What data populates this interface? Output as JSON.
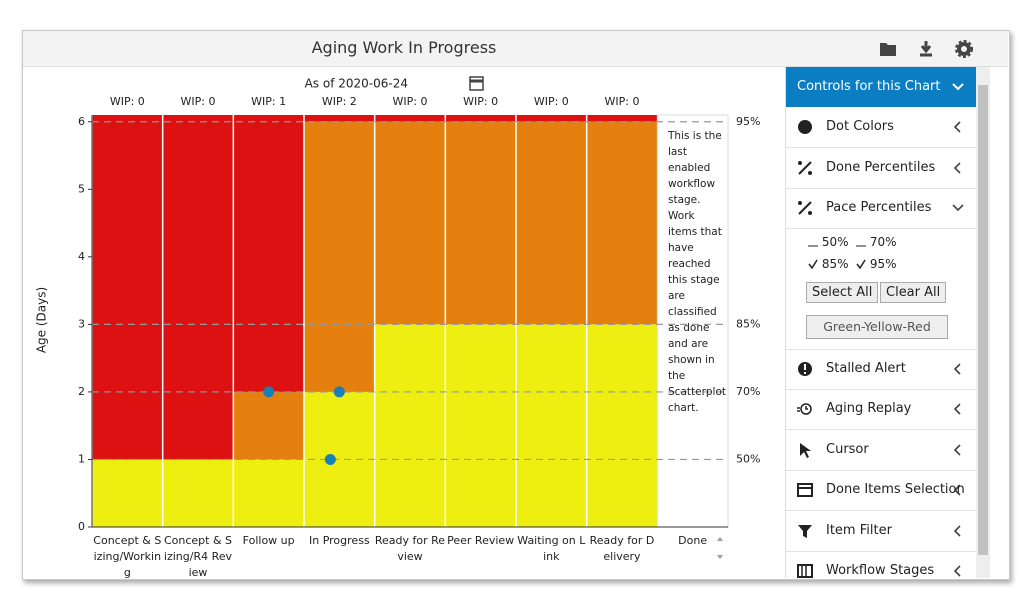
{
  "header": {
    "title": "Aging Work In Progress"
  },
  "chart_data": {
    "type": "scatter",
    "as_of": "As of 2020-06-24",
    "ylabel": "Age (Days)",
    "categories": [
      "Concept & Sizing/Working",
      "Concept & Sizing/R4 Review",
      "Follow up",
      "In Progress",
      "Ready for Review",
      "Peer Review",
      "Waiting on Link",
      "Ready for Delivery"
    ],
    "wip_labels": [
      "WIP: 0",
      "WIP: 0",
      "WIP: 1",
      "WIP: 2",
      "WIP: 0",
      "WIP: 0",
      "WIP: 0",
      "WIP: 0"
    ],
    "band_tops": {
      "yellow": [
        1,
        1,
        1,
        2,
        3,
        3,
        3,
        3
      ],
      "orange": [
        1,
        1,
        2,
        6,
        6,
        6,
        6,
        6
      ]
    },
    "colors": {
      "yellow": "#eeee11",
      "orange": "#e5800f",
      "red": "#dd1111",
      "dot": "#1a7fb5"
    },
    "points": {
      "x": [
        "Follow up",
        "In Progress",
        "In Progress"
      ],
      "y": [
        2,
        2,
        1
      ]
    },
    "pace_values": [
      1,
      2,
      3,
      6
    ],
    "pace_labels": [
      "50%",
      "70%",
      "85%",
      "95%"
    ],
    "ylim": [
      0,
      6.1
    ],
    "yticks": [
      0,
      1,
      2,
      3,
      4,
      5,
      6
    ],
    "done_label": "Done",
    "done_note": "This is the last enabled workflow stage. Work items that have reached this stage are classified as done and are shown in the Scatterplot chart."
  },
  "controls": {
    "title": "Controls for this Chart",
    "items": [
      "Dot Colors",
      "Done Percentiles",
      "Pace Percentiles",
      "Stalled Alert",
      "Aging Replay",
      "Cursor",
      "Done Items Selection",
      "Item Filter",
      "Workflow Stages"
    ],
    "pace_options": [
      {
        "label": "50%",
        "checked": false
      },
      {
        "label": "70%",
        "checked": false
      },
      {
        "label": "85%",
        "checked": true
      },
      {
        "label": "95%",
        "checked": true
      }
    ],
    "buttons": [
      "Select All",
      "Clear All"
    ],
    "palette": "Green-Yellow-Red"
  }
}
